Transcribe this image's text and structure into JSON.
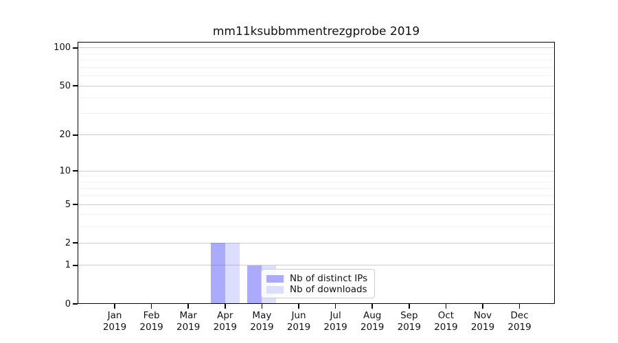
{
  "chart_data": {
    "type": "bar",
    "title": "mm11ksubbmmentrezgprobe 2019",
    "categories": [
      "Jan",
      "Feb",
      "Mar",
      "Apr",
      "May",
      "Jun",
      "Jul",
      "Aug",
      "Sep",
      "Oct",
      "Nov",
      "Dec"
    ],
    "x_tick_second_line": "2019",
    "series": [
      {
        "name": "Nb of distinct IPs",
        "color": "#aaaaff",
        "values": [
          0,
          0,
          0,
          2,
          1,
          0,
          0,
          0,
          0,
          0,
          0,
          0
        ]
      },
      {
        "name": "Nb of downloads",
        "color": "#ddddff",
        "values": [
          0,
          0,
          0,
          2,
          1,
          0,
          0,
          0,
          0,
          0,
          0,
          0
        ]
      }
    ],
    "xlabel": "",
    "ylabel": "",
    "y_scale": "log1p",
    "y_ticks": [
      0,
      1,
      2,
      5,
      10,
      20,
      50,
      100
    ],
    "y_minor_gridlines": [
      3,
      4,
      6,
      7,
      8,
      9,
      30,
      40,
      60,
      70,
      80,
      90
    ],
    "ylim": [
      0,
      112
    ],
    "grid": "horizontal",
    "legend": {
      "position": "inside-bottom-center",
      "entries": [
        "Nb of distinct IPs",
        "Nb of downloads"
      ]
    }
  }
}
